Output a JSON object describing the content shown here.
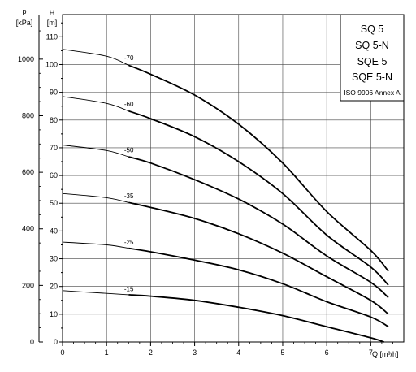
{
  "chart_data": {
    "type": "line",
    "x_axis": {
      "label": "Q [m³/h]",
      "ticks": [
        "0",
        "1",
        "2",
        "3",
        "4",
        "5",
        "6",
        "7"
      ],
      "range": [
        0,
        7.75
      ]
    },
    "y_axis_left_pressure": {
      "label_line1": "p",
      "label_line2": "[kPa]",
      "ticks": [
        "0",
        "200",
        "400",
        "600",
        "800",
        "1000"
      ]
    },
    "y_axis_head": {
      "label_line1": "H",
      "label_line2": "[m]",
      "ticks": [
        "0",
        "10",
        "20",
        "30",
        "40",
        "50",
        "60",
        "70",
        "80",
        "90",
        "100",
        "110"
      ],
      "range": [
        0,
        118
      ]
    },
    "grid": true,
    "legend": {
      "placement": "top-right",
      "models": [
        "SQ 5",
        "SQ 5-N",
        "SQE 5",
        "SQE 5-N"
      ],
      "note": "ISO 9906 Annex A"
    },
    "series": [
      {
        "name": "-70",
        "x": [
          0,
          1,
          2,
          3,
          4,
          5,
          6,
          7,
          7.4
        ],
        "y": [
          105.5,
          103,
          96.5,
          89,
          78.5,
          64.5,
          47,
          33,
          25.5
        ]
      },
      {
        "name": "-60",
        "x": [
          0,
          1,
          2,
          3,
          4,
          5,
          6,
          7,
          7.4
        ],
        "y": [
          88.5,
          86,
          80.5,
          74,
          65,
          53.5,
          38.5,
          27,
          20.5
        ]
      },
      {
        "name": "-50",
        "x": [
          0,
          1,
          2,
          3,
          4,
          5,
          6,
          7,
          7.4
        ],
        "y": [
          71,
          69,
          64.5,
          58.5,
          51.5,
          42.5,
          31,
          21.5,
          16
        ]
      },
      {
        "name": "-35",
        "x": [
          0,
          1,
          2,
          3,
          4,
          5,
          6,
          7,
          7.4
        ],
        "y": [
          53.5,
          52,
          48.5,
          44.5,
          39,
          32,
          23.5,
          15,
          10
        ]
      },
      {
        "name": "-25",
        "x": [
          0,
          1,
          2,
          3,
          4,
          5,
          6,
          7,
          7.4
        ],
        "y": [
          36,
          35,
          32.5,
          29.5,
          26,
          21,
          14.5,
          9,
          5.5
        ]
      },
      {
        "name": "-15",
        "x": [
          0,
          1,
          2,
          3,
          4,
          5,
          6,
          7,
          7.3
        ],
        "y": [
          18.5,
          17.5,
          16.5,
          15,
          12.5,
          9.5,
          5.5,
          1.5,
          0
        ]
      }
    ]
  }
}
